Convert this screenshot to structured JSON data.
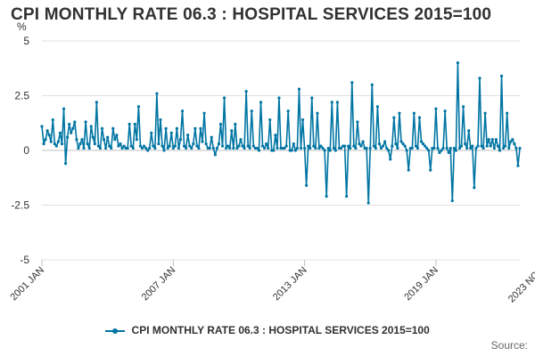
{
  "title": "CPI MONTHLY RATE 06.3 : HOSPITAL SERVICES 2015=100",
  "source_label": "Source:",
  "chart_data": {
    "type": "line",
    "title": "CPI MONTHLY RATE 06.3 : HOSPITAL SERVICES 2015=100",
    "ylabel": "%",
    "xlabel": "",
    "ylim": [
      -5,
      5
    ],
    "yticks": [
      5,
      2.5,
      0,
      -2.5,
      -5
    ],
    "ytick_labels": [
      "5",
      "2.5",
      "0",
      "-2.5",
      "-5"
    ],
    "x_start": "2001 JAN",
    "x_end": "2023 NOV",
    "xticks": [
      "2001 JAN",
      "2007 JAN",
      "2013 JAN",
      "2019 JAN",
      "2023 NOV"
    ],
    "legend_position": "bottom",
    "grid": "horizontal",
    "color": "#0075a3",
    "series": [
      {
        "name": "CPI MONTHLY RATE 06.3 : HOSPITAL SERVICES 2015=100",
        "values": [
          1.1,
          0.3,
          0.5,
          0.9,
          0.7,
          0.4,
          1.4,
          0.3,
          0.2,
          0.4,
          0.8,
          0.3,
          1.9,
          -0.6,
          0.6,
          1.2,
          0.8,
          1.0,
          1.3,
          0.5,
          0.1,
          0.3,
          0.5,
          0.1,
          1.3,
          0.3,
          0.1,
          1.1,
          0.6,
          0.3,
          2.2,
          0.2,
          0.1,
          1.0,
          0.5,
          0.1,
          0.6,
          0.2,
          0.1,
          1.0,
          0.5,
          0.7,
          0.2,
          0.3,
          0.1,
          0.2,
          0.1,
          0.1,
          1.2,
          0.2,
          0.1,
          1.2,
          0.5,
          2.0,
          0.2,
          0.1,
          0.2,
          0.1,
          0.0,
          0.1,
          0.8,
          0.2,
          0.1,
          2.6,
          0.3,
          1.4,
          0.2,
          0.0,
          1.0,
          0.1,
          0.2,
          0.8,
          0.1,
          0.2,
          1.0,
          0.1,
          0.5,
          1.8,
          0.2,
          0.1,
          0.7,
          0.2,
          0.1,
          0.3,
          1.0,
          0.2,
          0.1,
          1.0,
          0.4,
          1.7,
          0.3,
          0.1,
          0.1,
          0.6,
          0.1,
          -0.2,
          0.1,
          0.3,
          1.2,
          0.2,
          2.4,
          0.1,
          0.2,
          0.1,
          0.9,
          0.1,
          1.2,
          0.1,
          0.2,
          0.5,
          0.2,
          0.1,
          2.7,
          0.2,
          0.1,
          1.8,
          0.2,
          0.1,
          0.1,
          0.0,
          2.2,
          0.2,
          0.1,
          0.3,
          0.1,
          1.4,
          0.0,
          0.0,
          0.7,
          0.1,
          2.4,
          0.1,
          0.1,
          0.1,
          0.2,
          1.8,
          0.0,
          0.0,
          0.3,
          0.0,
          0.1,
          2.8,
          0.1,
          1.4,
          0.1,
          -1.6,
          0.2,
          0.1,
          2.4,
          0.2,
          0.1,
          1.7,
          0.1,
          0.2,
          0.1,
          0.0,
          -2.1,
          0.1,
          0.0,
          2.2,
          0.1,
          0.0,
          2.2,
          0.1,
          0.1,
          0.2,
          0.2,
          -2.1,
          0.2,
          0.1,
          3.1,
          0.2,
          0.1,
          1.3,
          0.3,
          0.2,
          0.4,
          0.1,
          0.1,
          -2.4,
          0.1,
          3.0,
          0.2,
          0.1,
          2.0,
          0.3,
          0.1,
          0.2,
          0.4,
          0.1,
          0.0,
          -0.4,
          0.2,
          1.5,
          0.3,
          0.1,
          1.7,
          0.4,
          0.3,
          0.2,
          0.0,
          -0.9,
          0.1,
          0.1,
          1.7,
          0.2,
          0.1,
          1.5,
          0.4,
          0.3,
          0.2,
          0.1,
          0.0,
          -0.9,
          0.1,
          0.1,
          1.9,
          0.1,
          -0.1,
          0.0,
          0.1,
          1.8,
          0.1,
          -0.1,
          0.1,
          -2.3,
          0.1,
          0.0,
          4.0,
          0.1,
          0.2,
          2.0,
          0.3,
          0.1,
          0.9,
          0.1,
          0.2,
          -1.7,
          0.1,
          0.2,
          3.3,
          0.2,
          0.1,
          1.7,
          0.2,
          0.5,
          0.2,
          0.5,
          0.1,
          0.5,
          0.2,
          0.0,
          3.4,
          0.1,
          0.2,
          1.7,
          0.1,
          0.4,
          0.5,
          0.3,
          0.1,
          -0.7,
          0.1
        ]
      }
    ]
  }
}
